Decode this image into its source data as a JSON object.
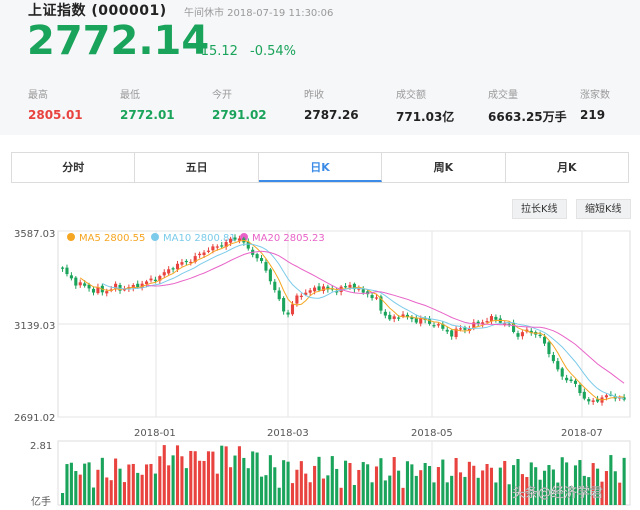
{
  "header": {
    "title": "上证指数 (000001)",
    "status": "午间休市 2018-07-19 11:30:06",
    "price": "2772.14",
    "change": "-15.12",
    "change_pct": "-0.54%"
  },
  "stats": [
    {
      "label": "最高",
      "value": "2805.01",
      "color": "red"
    },
    {
      "label": "最低",
      "value": "2772.01",
      "color": "green"
    },
    {
      "label": "今开",
      "value": "2791.02",
      "color": "green"
    },
    {
      "label": "昨收",
      "value": "2787.26",
      "color": "plain"
    },
    {
      "label": "成交额",
      "value": "771.03亿",
      "color": "plain"
    },
    {
      "label": "成交量",
      "value": "6663.25万手",
      "color": "plain"
    },
    {
      "label": "涨家数",
      "value": "219",
      "color": "plain"
    }
  ],
  "tabs": [
    {
      "label": "分时",
      "active": false
    },
    {
      "label": "五日",
      "active": false
    },
    {
      "label": "日K",
      "active": true
    },
    {
      "label": "周K",
      "active": false
    },
    {
      "label": "月K",
      "active": false
    }
  ],
  "buttons": {
    "stretch": "拉长K线",
    "shorten": "缩短K线"
  },
  "colors": {
    "up": "#e8433f",
    "down": "#1aa35a",
    "ma5": "#f5a623",
    "ma10": "#7ccbea",
    "ma20": "#e864c8",
    "accent": "#3c8ce7"
  },
  "chart_data": {
    "type": "candlestick",
    "y_ticks": [
      "3587.03",
      "3139.03",
      "2691.02"
    ],
    "ylim": [
      2691.02,
      3587.03
    ],
    "x_ticks": [
      "2018-01",
      "2018-03",
      "2018-05",
      "2018-07"
    ],
    "legend": [
      {
        "name": "MA5 2800.55",
        "color": "#f5a623"
      },
      {
        "name": "MA10 2800.81",
        "color": "#7ccbea"
      },
      {
        "name": "MA20 2805.23",
        "color": "#e864c8"
      }
    ],
    "close_path": [
      3400,
      3370,
      3340,
      3330,
      3320,
      3300,
      3305,
      3290,
      3310,
      3320,
      3300,
      3320,
      3315,
      3330,
      3340,
      3350,
      3360,
      3380,
      3400,
      3420,
      3430,
      3440,
      3450,
      3470,
      3490,
      3500,
      3510,
      3520,
      3540,
      3545,
      3560,
      3510,
      3480,
      3460,
      3420,
      3360,
      3300,
      3220,
      3180,
      3240,
      3280,
      3290,
      3300,
      3310,
      3320,
      3300,
      3300,
      3310,
      3320,
      3330,
      3300,
      3290,
      3280,
      3260,
      3200,
      3170,
      3160,
      3180,
      3190,
      3150,
      3160,
      3170,
      3130,
      3150,
      3120,
      3100,
      3090,
      3120,
      3110,
      3130,
      3140,
      3150,
      3160,
      3170,
      3150,
      3140,
      3120,
      3080,
      3100,
      3110,
      3090,
      3070,
      3020,
      2960,
      2900,
      2880,
      2860,
      2840,
      2790,
      2760,
      2770,
      2780,
      2790,
      2800,
      2780,
      2772
    ],
    "volume_axis": {
      "top": "2.81",
      "unit": "亿手"
    },
    "watermark": "头条@经济学君"
  }
}
